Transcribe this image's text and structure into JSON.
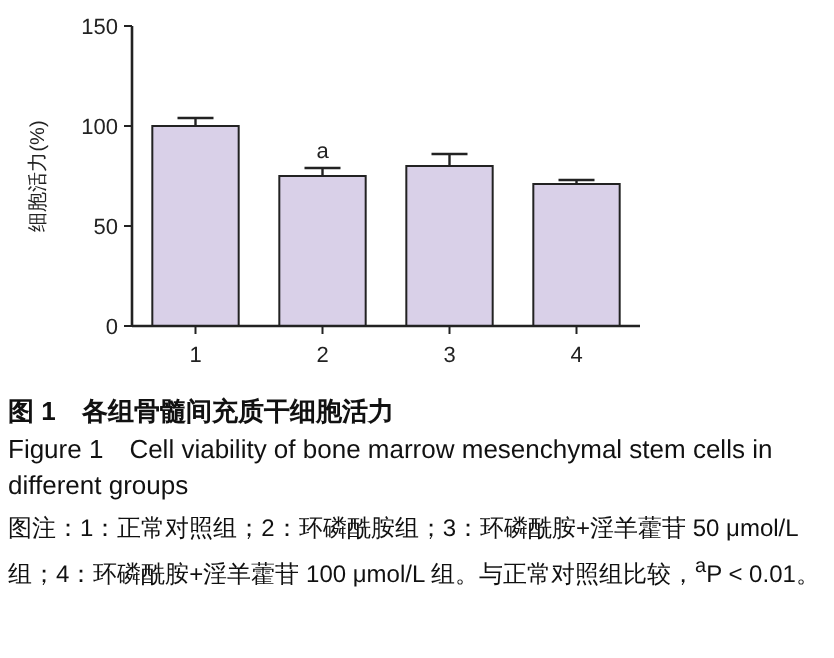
{
  "chart_data": {
    "type": "bar",
    "title": "图 1　各组骨髓间充质干细胞活力",
    "subtitle": "Figure 1　Cell viability of bone marrow mesenchymal stem cells in different groups",
    "ylabel": "细胞活力(%)",
    "categories": [
      "1",
      "2",
      "3",
      "4"
    ],
    "values": [
      100,
      75,
      80,
      71
    ],
    "errors": [
      [
        100,
        104
      ],
      [
        75,
        79
      ],
      [
        80,
        86
      ],
      [
        71,
        73
      ]
    ],
    "color": "#d9d0e8",
    "ylim": [
      0,
      150
    ],
    "yticks": [
      0,
      50,
      100,
      150
    ],
    "grid": false,
    "annotations": [
      {
        "text": "a",
        "x": "2",
        "y": 84
      },
      "图注：1：正常对照组；2：环磷酰胺组；3：环磷酰胺+淫羊藿苷 50 μmol/L 组；4：环磷酰胺+淫羊藿苷 100 μmol/L 组。与正常对照组比较，$^{a}$P < 0.01。"
    ]
  }
}
